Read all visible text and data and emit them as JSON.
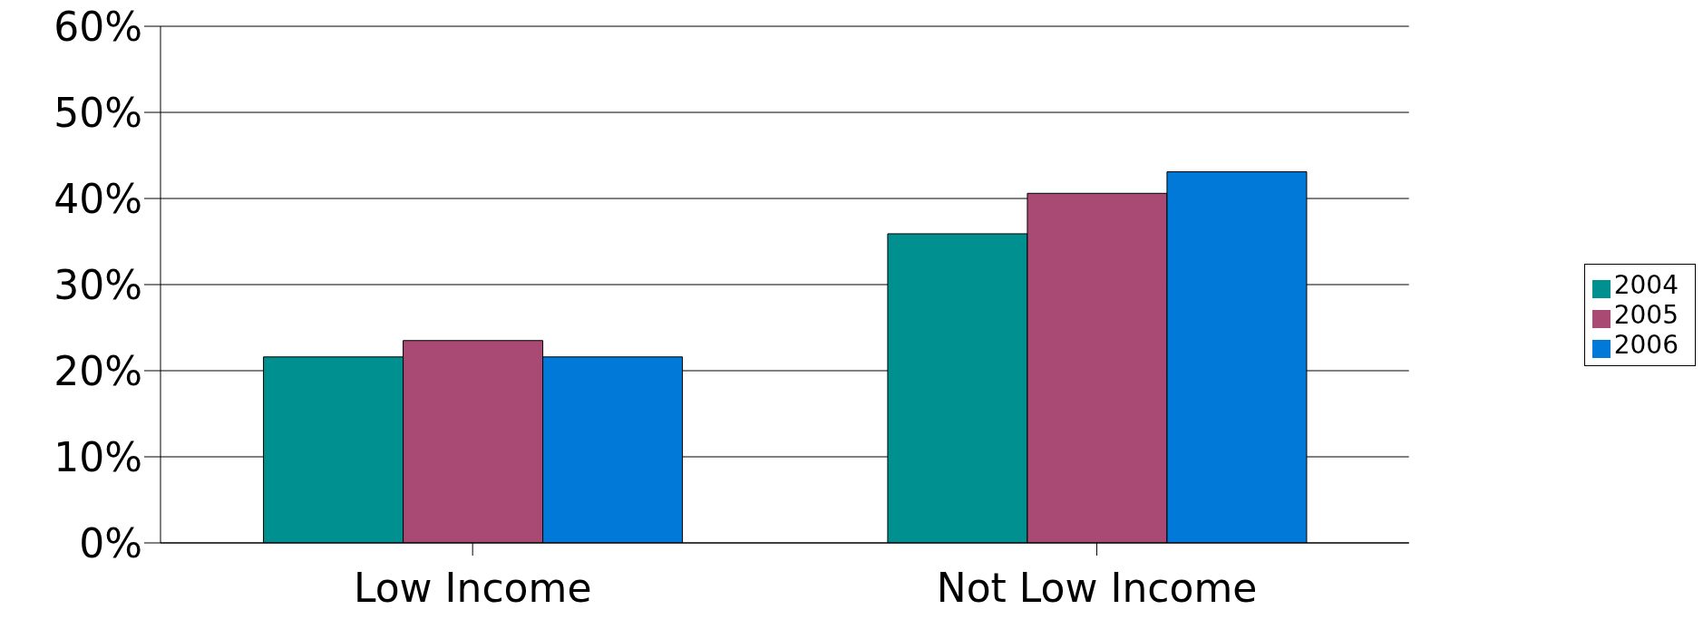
{
  "chart_data": {
    "type": "bar",
    "categories": [
      "Low Income",
      "Not Low Income"
    ],
    "series": [
      {
        "name": "2004",
        "color": "#009090",
        "values": [
          21.6,
          35.9
        ]
      },
      {
        "name": "2005",
        "color": "#a84a74",
        "values": [
          23.5,
          40.6
        ]
      },
      {
        "name": "2006",
        "color": "#0079d8",
        "values": [
          21.6,
          43.1
        ]
      }
    ],
    "ylim": [
      0,
      60
    ],
    "yticks": [
      {
        "value": 0,
        "label": "0%"
      },
      {
        "value": 10,
        "label": "10%"
      },
      {
        "value": 20,
        "label": "20%"
      },
      {
        "value": 30,
        "label": "30%"
      },
      {
        "value": 40,
        "label": "40%"
      },
      {
        "value": 50,
        "label": "50%"
      },
      {
        "value": 60,
        "label": "60%"
      }
    ],
    "grid": "y",
    "legend": "right"
  }
}
